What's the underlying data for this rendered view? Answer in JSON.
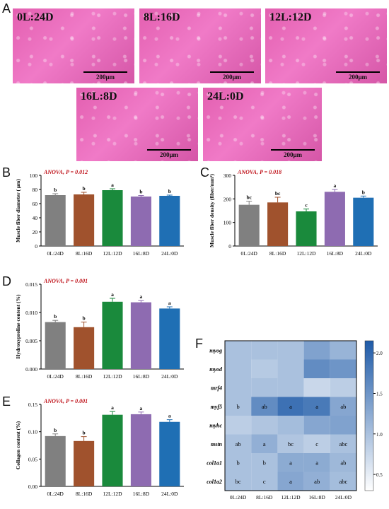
{
  "panelA": {
    "letter": "A",
    "images": [
      {
        "label": "0L:24D",
        "scale": "200μm"
      },
      {
        "label": "8L:16D",
        "scale": "200μm"
      },
      {
        "label": "12L:12D",
        "scale": "200μm"
      },
      {
        "label": "16L:8D",
        "scale": "200μm"
      },
      {
        "label": "24L:0D",
        "scale": "200μm"
      }
    ]
  },
  "colors": {
    "bars": [
      "#808080",
      "#a0522d",
      "#1a8a3c",
      "#8e6bb1",
      "#1f6fb4"
    ]
  },
  "chart_data": [
    {
      "panel": "B",
      "type": "bar",
      "annotation": "ANOVA, P = 0.012",
      "ylabel": "Muscle fiber diameter ( μm)",
      "categories": [
        "0L:24D",
        "8L:16D",
        "12L:12D",
        "16L:8D",
        "24L:0D"
      ],
      "values": [
        72,
        73,
        79,
        70,
        71
      ],
      "errors": [
        2,
        3,
        2,
        1.5,
        1
      ],
      "letters": [
        "b",
        "b",
        "a",
        "b",
        "b"
      ],
      "ylim": [
        0,
        100
      ],
      "yticks": [
        "0",
        "20",
        "40",
        "60",
        "80",
        "100"
      ]
    },
    {
      "panel": "C",
      "type": "bar",
      "annotation": "ANOVA, P = 0.018",
      "ylabel": "Muscle fiber density (fiber/mm²)",
      "categories": [
        "0L:24D",
        "8L:16D",
        "12L:12D",
        "16L:8D",
        "24L:0D"
      ],
      "values": [
        175,
        185,
        147,
        230,
        205
      ],
      "errors": [
        15,
        22,
        10,
        10,
        7
      ],
      "letters": [
        "bc",
        "bc",
        "c",
        "a",
        "b"
      ],
      "ylim": [
        0,
        300
      ],
      "yticks": [
        "0",
        "100",
        "200",
        "300"
      ]
    },
    {
      "panel": "D",
      "type": "bar",
      "annotation": "ANOVA, P = 0.001",
      "ylabel": "Hydroxyproline content (%)",
      "categories": [
        "0L:24D",
        "8L:16D",
        "12L:12D",
        "16L:8D",
        "24L:0D"
      ],
      "values": [
        0.0083,
        0.0074,
        0.0119,
        0.0118,
        0.0107
      ],
      "errors": [
        0.0003,
        0.0009,
        0.0006,
        0.0003,
        0.0003
      ],
      "letters": [
        "b",
        "b",
        "a",
        "a",
        "a"
      ],
      "ylim": [
        0,
        0.015
      ],
      "yticks": [
        "0.000",
        "0.005",
        "0.010",
        "0.015"
      ]
    },
    {
      "panel": "E",
      "type": "bar",
      "annotation": "ANOVA, P = 0.001",
      "ylabel": "Collagen content (%)",
      "categories": [
        "0L:24D",
        "8L:16D",
        "12L:12D",
        "16L:8D",
        "24L:0D"
      ],
      "values": [
        0.092,
        0.083,
        0.131,
        0.132,
        0.118
      ],
      "errors": [
        0.004,
        0.008,
        0.006,
        0.004,
        0.004
      ],
      "letters": [
        "b",
        "b",
        "a",
        "a",
        "a"
      ],
      "ylim": [
        0,
        0.15
      ],
      "yticks": [
        "0.00",
        "0.05",
        "0.10",
        "0.15"
      ]
    },
    {
      "panel": "F",
      "type": "heatmap",
      "rows": [
        "myog",
        "myod",
        "mrf4",
        "myf5",
        "myhc",
        "mstn",
        "col1a1",
        "col1a2"
      ],
      "columns": [
        "0L:24D",
        "8L:16D",
        "12L:12D",
        "16L:8D",
        "24L:0D"
      ],
      "values": [
        [
          1.0,
          1.0,
          1.0,
          1.35,
          1.15
        ],
        [
          1.0,
          0.9,
          1.0,
          1.6,
          1.5
        ],
        [
          1.0,
          1.0,
          1.0,
          0.75,
          0.85
        ],
        [
          1.0,
          1.6,
          1.9,
          1.8,
          1.3
        ],
        [
          0.85,
          0.95,
          1.05,
          1.3,
          1.35
        ],
        [
          1.0,
          1.2,
          0.95,
          0.85,
          1.0
        ],
        [
          1.0,
          1.0,
          1.25,
          1.25,
          1.1
        ],
        [
          1.0,
          1.0,
          1.3,
          1.2,
          1.05
        ]
      ],
      "cell_letters": [
        [
          "",
          "",
          "",
          "",
          ""
        ],
        [
          "",
          "",
          "",
          "",
          ""
        ],
        [
          "",
          "",
          "",
          "",
          ""
        ],
        [
          "b",
          "ab",
          "a",
          "a",
          "ab"
        ],
        [
          "",
          "",
          "",
          "",
          ""
        ],
        [
          "ab",
          "a",
          "bc",
          "c",
          "abc"
        ],
        [
          "b",
          "b",
          "a",
          "a",
          "ab"
        ],
        [
          "bc",
          "c",
          "a",
          "ab",
          "abc"
        ]
      ],
      "colorbar": {
        "min": 0.3,
        "max": 2.15,
        "ticks": [
          "0.5",
          "1.0",
          "1.5",
          "2.0"
        ],
        "low_color": "#ffffff",
        "high_color": "#1f5ba8"
      }
    }
  ]
}
